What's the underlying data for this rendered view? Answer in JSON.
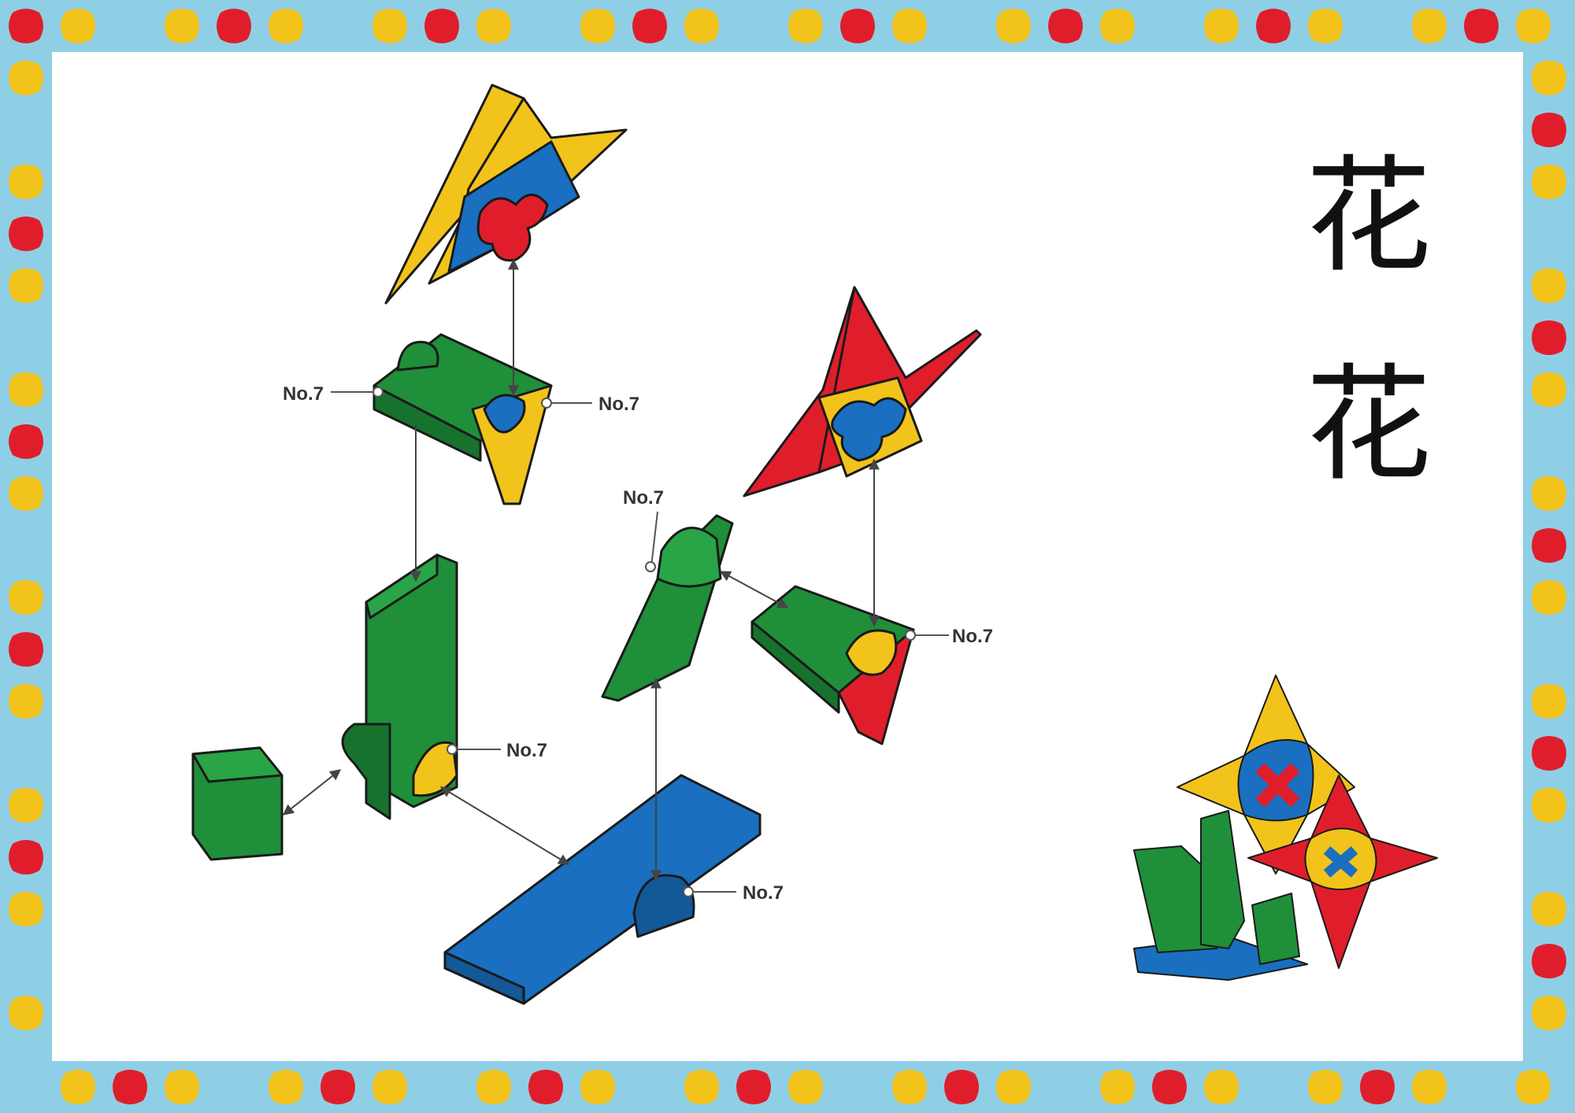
{
  "title": {
    "char_1": "花",
    "char_2": "花"
  },
  "callouts": [
    "No.7",
    "No.7",
    "No.7",
    "No.7",
    "No.7",
    "No.7"
  ],
  "colors": {
    "green": "#1f8f3a",
    "blue": "#1a6fc0",
    "yellow": "#f2c31b",
    "red": "#e01e2b",
    "border_light_blue": "#8fcfe6",
    "outline": "#1a1a1a"
  },
  "icons": [
    "puzzle-piece-icon"
  ]
}
